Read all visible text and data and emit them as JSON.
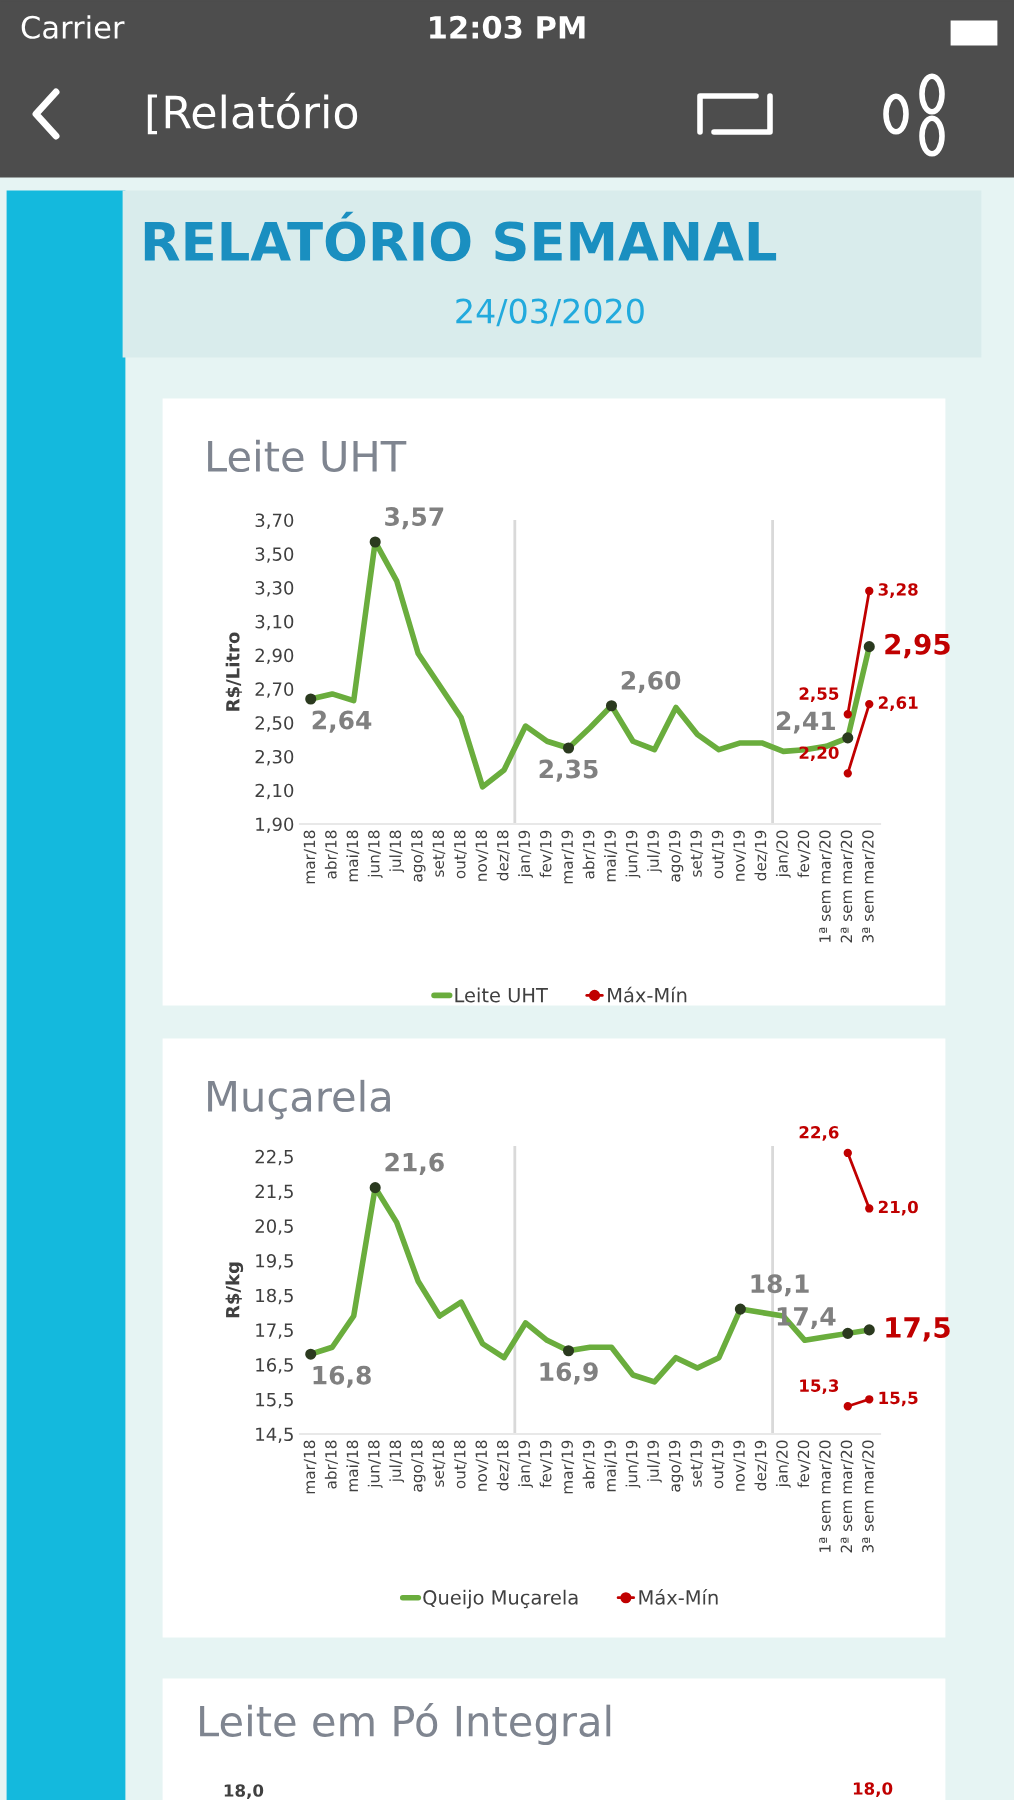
{
  "chart_data": [
    {
      "type": "other",
      "title": "RELATÓRIO SEMANAL",
      "subtitle": "24/03/2020",
      "annotations": [
        "Carrier",
        "12:03 PM",
        "[Relatório"
      ]
    },
    {
      "type": "line",
      "title": "Leite UHT",
      "ylabel": "R$/Litro",
      "categories": [
        "mar/18",
        "abr/18",
        "mai/18",
        "jun/18",
        "jul/18",
        "ago/18",
        "set/18",
        "out/18",
        "nov/18",
        "dez/18",
        "jan/19",
        "fev/19",
        "mar/19",
        "abr/19",
        "mai/19",
        "jun/19",
        "jul/19",
        "ago/19",
        "set/19",
        "out/19",
        "nov/19",
        "dez/19",
        "jan/20",
        "fev/20",
        "1ª sem mar/20",
        "2ª sem mar/20",
        "3ª sem mar/20"
      ],
      "series": [
        {
          "name": "Leite UHT",
          "color": "#6aad3d",
          "values": [
            2.64,
            2.67,
            2.63,
            3.57,
            3.34,
            2.91,
            2.72,
            2.53,
            2.12,
            2.22,
            2.48,
            2.39,
            2.35,
            2.47,
            2.6,
            2.39,
            2.34,
            2.59,
            2.43,
            2.34,
            2.38,
            2.38,
            2.33,
            2.34,
            2.36,
            2.41,
            2.95
          ],
          "value_labels": [
            "2,64",
            null,
            null,
            "3,57",
            null,
            null,
            null,
            null,
            null,
            null,
            null,
            null,
            "2,35",
            null,
            "2,60",
            null,
            null,
            null,
            null,
            null,
            null,
            null,
            null,
            null,
            null,
            "2,41",
            "2,95"
          ]
        },
        {
          "name": "Máx-Mín",
          "color": "#c00000",
          "marker": "circle",
          "values": [
            null,
            null,
            null,
            null,
            null,
            null,
            null,
            null,
            null,
            null,
            null,
            null,
            null,
            null,
            null,
            null,
            null,
            null,
            null,
            null,
            null,
            null,
            null,
            null,
            null,
            2.55,
            3.28
          ],
          "value_labels": [
            null,
            null,
            null,
            null,
            null,
            null,
            null,
            null,
            null,
            null,
            null,
            null,
            null,
            null,
            null,
            null,
            null,
            null,
            null,
            null,
            null,
            null,
            null,
            null,
            null,
            "2,55",
            "3,28"
          ]
        },
        {
          "color": "#c00000",
          "marker": "circle",
          "values": [
            null,
            null,
            null,
            null,
            null,
            null,
            null,
            null,
            null,
            null,
            null,
            null,
            null,
            null,
            null,
            null,
            null,
            null,
            null,
            null,
            null,
            null,
            null,
            null,
            null,
            2.2,
            2.61
          ],
          "value_labels": [
            null,
            null,
            null,
            null,
            null,
            null,
            null,
            null,
            null,
            null,
            null,
            null,
            null,
            null,
            null,
            null,
            null,
            null,
            null,
            null,
            null,
            null,
            null,
            null,
            null,
            "2,20",
            "2,61"
          ]
        }
      ],
      "ylim": [
        1.9,
        3.7
      ],
      "yticks": [
        {
          "value": 1.9,
          "label": "1,90"
        },
        {
          "value": 2.1,
          "label": "2,10"
        },
        {
          "value": 2.3,
          "label": "2,30"
        },
        {
          "value": 2.5,
          "label": "2,50"
        },
        {
          "value": 2.7,
          "label": "2,70"
        },
        {
          "value": 2.9,
          "label": "2,90"
        },
        {
          "value": 3.1,
          "label": "3,10"
        },
        {
          "value": 3.3,
          "label": "3,30"
        },
        {
          "value": 3.5,
          "label": "3,50"
        },
        {
          "value": 3.7,
          "label": "3,70"
        }
      ],
      "grid": false,
      "legend": "bottom"
    },
    {
      "type": "line",
      "title": "Muçarela",
      "ylabel": "R$/kg",
      "categories": [
        "mar/18",
        "abr/18",
        "mai/18",
        "jun/18",
        "jul/18",
        "ago/18",
        "set/18",
        "out/18",
        "nov/18",
        "dez/18",
        "jan/19",
        "fev/19",
        "mar/19",
        "abr/19",
        "mai/19",
        "jun/19",
        "jul/19",
        "ago/19",
        "set/19",
        "out/19",
        "nov/19",
        "dez/19",
        "jan/20",
        "fev/20",
        "1ª sem mar/20",
        "2ª sem mar/20",
        "3ª sem mar/20"
      ],
      "series": [
        {
          "name": "Queijo Muçarela",
          "color": "#6aad3d",
          "values": [
            16.8,
            17.0,
            17.9,
            21.6,
            20.6,
            18.9,
            17.9,
            18.3,
            17.1,
            16.7,
            17.7,
            17.2,
            16.9,
            17.0,
            17.0,
            16.2,
            16.0,
            16.7,
            16.4,
            16.7,
            18.1,
            18.0,
            17.9,
            17.2,
            17.3,
            17.4,
            17.5
          ],
          "value_labels": [
            "16,8",
            null,
            null,
            "21,6",
            null,
            null,
            null,
            null,
            null,
            null,
            null,
            null,
            "16,9",
            null,
            null,
            null,
            null,
            null,
            null,
            null,
            "18,1",
            null,
            null,
            null,
            null,
            "17,4",
            "17,5"
          ]
        },
        {
          "name": "Máx-Mín",
          "color": "#c00000",
          "marker": "circle",
          "values": [
            null,
            null,
            null,
            null,
            null,
            null,
            null,
            null,
            null,
            null,
            null,
            null,
            null,
            null,
            null,
            null,
            null,
            null,
            null,
            null,
            null,
            null,
            null,
            null,
            null,
            22.6,
            21.0
          ],
          "value_labels": [
            null,
            null,
            null,
            null,
            null,
            null,
            null,
            null,
            null,
            null,
            null,
            null,
            null,
            null,
            null,
            null,
            null,
            null,
            null,
            null,
            null,
            null,
            null,
            null,
            null,
            "22,6",
            "21,0"
          ]
        },
        {
          "color": "#c00000",
          "marker": "circle",
          "values": [
            null,
            null,
            null,
            null,
            null,
            null,
            null,
            null,
            null,
            null,
            null,
            null,
            null,
            null,
            null,
            null,
            null,
            null,
            null,
            null,
            null,
            null,
            null,
            null,
            null,
            15.3,
            15.5
          ],
          "value_labels": [
            null,
            null,
            null,
            null,
            null,
            null,
            null,
            null,
            null,
            null,
            null,
            null,
            null,
            null,
            null,
            null,
            null,
            null,
            null,
            null,
            null,
            null,
            null,
            null,
            null,
            "15,3",
            "15,5"
          ]
        }
      ],
      "ylim": [
        14.5,
        22.8
      ],
      "yticks": [
        {
          "value": 14.5,
          "label": "14,5"
        },
        {
          "value": 15.5,
          "label": "15,5"
        },
        {
          "value": 16.5,
          "label": "16,5"
        },
        {
          "value": 17.5,
          "label": "17,5"
        },
        {
          "value": 18.5,
          "label": "18,5"
        },
        {
          "value": 19.5,
          "label": "19,5"
        },
        {
          "value": 20.5,
          "label": "20,5"
        },
        {
          "value": 21.5,
          "label": "21,5"
        },
        {
          "value": 22.5,
          "label": "22,5"
        }
      ],
      "grid": false,
      "legend": "bottom"
    },
    {
      "type": "other",
      "title": "Leite em Pó Integral",
      "annotations": [
        "18,0",
        "18,0"
      ]
    }
  ]
}
